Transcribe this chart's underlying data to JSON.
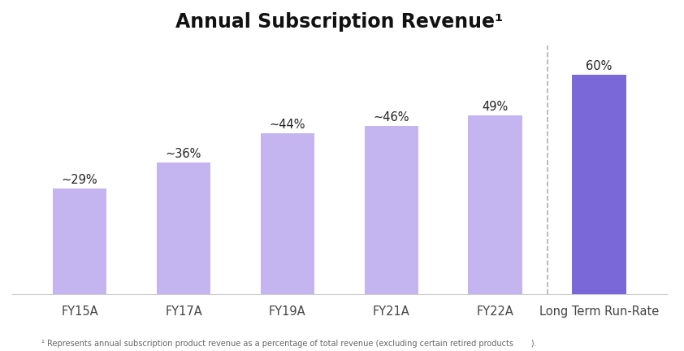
{
  "title": "Annual Subscription Revenue¹",
  "categories": [
    "FY15A",
    "FY17A",
    "FY19A",
    "FY21A",
    "FY22A",
    "Long Term Run-Rate"
  ],
  "values": [
    29,
    36,
    44,
    46,
    49,
    60
  ],
  "labels": [
    "~29%",
    "~36%",
    "~44%",
    "~46%",
    "49%",
    "60%"
  ],
  "bar_colors": [
    "#c4b5f0",
    "#c4b5f0",
    "#c4b5f0",
    "#c4b5f0",
    "#c4b5f0",
    "#7b68d8"
  ],
  "dashed_line_x": 4.5,
  "footnote": "¹ Represents annual subscription product revenue as a percentage of total revenue (excluding certain retired products       ).",
  "ylim": [
    0,
    68
  ],
  "background_color": "#ffffff",
  "title_fontsize": 17,
  "label_fontsize": 10.5,
  "tick_fontsize": 10.5,
  "footnote_fontsize": 7.0,
  "bar_width": 0.52
}
